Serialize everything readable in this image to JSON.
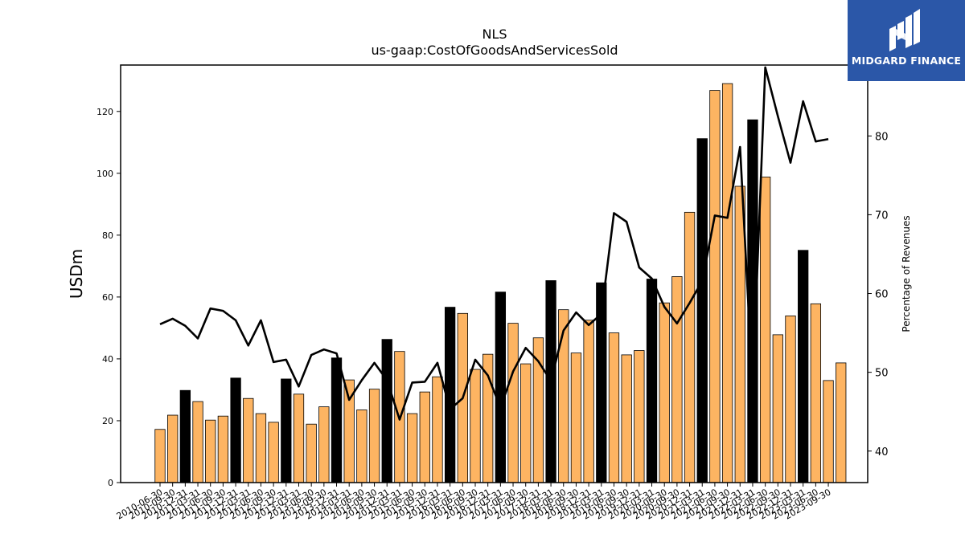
{
  "brand": {
    "name": "MIDGARD FINANCE",
    "bg_color": "#2b57a8",
    "icon": "midgard-m-icon"
  },
  "colors": {
    "bar_normal": "#fdb462",
    "bar_highlight": "#000000",
    "line": "#000000"
  },
  "chart_data": {
    "type": "bar",
    "title": "NLS",
    "subtitle": "us-gaap:CostOfGoodsAndServicesSold",
    "ylabel": "USDm",
    "y2label": "Percentage of Revenues",
    "ylim": [
      0,
      135
    ],
    "y2lim": [
      36,
      89
    ],
    "yticks": [
      0,
      20,
      40,
      60,
      80,
      100,
      120
    ],
    "y2ticks": [
      40,
      50,
      60,
      70,
      80
    ],
    "categories": [
      "2010-06-30",
      "2010-09-30",
      "2010-12-31",
      "2011-03-31",
      "2011-06-30",
      "2011-09-30",
      "2011-12-31",
      "2012-03-31",
      "2012-06-30",
      "2012-09-30",
      "2012-12-31",
      "2013-03-31",
      "2013-06-30",
      "2013-09-30",
      "2013-12-31",
      "2014-03-31",
      "2014-06-30",
      "2014-09-30",
      "2014-12-31",
      "2015-03-31",
      "2015-06-30",
      "2015-09-30",
      "2015-12-31",
      "2016-03-31",
      "2016-06-30",
      "2016-09-30",
      "2016-12-31",
      "2017-03-31",
      "2017-06-30",
      "2017-09-30",
      "2017-12-31",
      "2018-03-31",
      "2018-06-30",
      "2018-09-30",
      "2018-12-31",
      "2019-03-31",
      "2019-06-30",
      "2019-09-30",
      "2019-12-31",
      "2020-03-31",
      "2020-06-30",
      "2020-09-30",
      "2020-12-31",
      "2021-03-31",
      "2021-06-30",
      "2021-09-30",
      "2021-12-31",
      "2022-03-31",
      "2022-06-30",
      "2022-09-30",
      "2022-12-31",
      "2023-03-31",
      "2023-06-30",
      "2023-09-30"
    ],
    "series": [
      {
        "type": "bar",
        "axis": "left",
        "values": [
          17.2,
          21.8,
          29.8,
          26.2,
          20.2,
          21.5,
          33.8,
          27.2,
          22.3,
          19.5,
          33.5,
          28.6,
          18.9,
          24.5,
          40.3,
          33.2,
          23.5,
          30.2,
          46.3,
          42.4,
          22.3,
          29.3,
          34.2,
          56.7,
          54.7,
          36.6,
          41.5,
          61.6,
          51.5,
          38.4,
          46.8,
          65.3,
          55.9,
          41.9,
          52.5,
          64.6,
          48.4,
          41.3,
          42.7,
          65.8,
          58.1,
          66.6,
          87.4,
          111.2,
          126.8,
          129.0,
          95.8,
          117.3,
          98.8,
          47.8,
          53.9,
          75.1,
          57.8,
          33.0
        ],
        "highlight": [
          false,
          false,
          true,
          false,
          false,
          false,
          true,
          false,
          false,
          false,
          true,
          false,
          false,
          false,
          true,
          false,
          false,
          false,
          true,
          false,
          false,
          false,
          false,
          true,
          false,
          false,
          false,
          true,
          false,
          false,
          false,
          true,
          false,
          false,
          false,
          true,
          false,
          false,
          false,
          true,
          false,
          false,
          false,
          true,
          false,
          false,
          false,
          true,
          false,
          false,
          false,
          true,
          false,
          false
        ]
      },
      {
        "type": "line",
        "axis": "right",
        "values": [
          56.1,
          56.8,
          55.9,
          54.3,
          58.1,
          57.8,
          56.6,
          53.4,
          56.6,
          51.3,
          51.6,
          48.2,
          52.2,
          52.9,
          52.4,
          46.5,
          49.0,
          51.2,
          49.0,
          44.0,
          48.7,
          48.8,
          51.2,
          45.3,
          46.7,
          51.6,
          49.6,
          45.5,
          50.1,
          53.1,
          51.4,
          48.9,
          55.3,
          57.6,
          56.0,
          57.4,
          70.2,
          69.1,
          63.3,
          61.9,
          58.3,
          56.2,
          58.8,
          61.6,
          69.9,
          69.6,
          78.6,
          48.1,
          88.7,
          82.5,
          76.6,
          84.4,
          79.3,
          79.6
        ]
      }
    ],
    "extra_bar": {
      "position_after_last": 1,
      "value": 38.7,
      "highlight": false
    },
    "legend": "none",
    "grid": false
  }
}
